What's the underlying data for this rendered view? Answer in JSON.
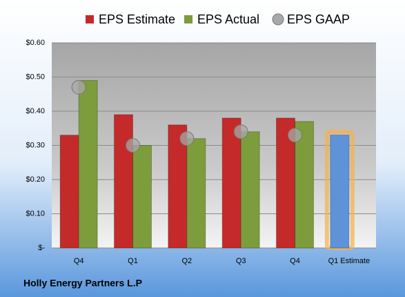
{
  "chart_data": {
    "type": "bar",
    "title": "Holly Energy Partners L.P",
    "categories": [
      "Q4",
      "Q1",
      "Q2",
      "Q3",
      "Q4",
      "Q1 Estimate"
    ],
    "series": [
      {
        "name": "EPS Estimate",
        "color": "#c42a2a",
        "values": [
          0.33,
          0.39,
          0.36,
          0.38,
          0.38,
          0.33
        ],
        "point_colors": [
          "#c42a2a",
          "#c42a2a",
          "#c42a2a",
          "#c42a2a",
          "#c42a2a",
          "#5e93d8"
        ]
      },
      {
        "name": "EPS Actual",
        "color": "#7d9c3c",
        "values": [
          0.49,
          0.3,
          0.32,
          0.34,
          0.37,
          null
        ]
      },
      {
        "name": "EPS GAAP",
        "type": "scatter",
        "color": "#a8a8a8",
        "values": [
          0.47,
          0.3,
          0.32,
          0.34,
          0.33,
          null
        ]
      }
    ],
    "highlight_color": "#f7b04a",
    "ylim": [
      0,
      0.6
    ],
    "yticks": [
      {
        "value": 0,
        "label": "$-"
      },
      {
        "value": 0.1,
        "label": "$0.10"
      },
      {
        "value": 0.2,
        "label": "$0.20"
      },
      {
        "value": 0.3,
        "label": "$0.30"
      },
      {
        "value": 0.4,
        "label": "$0.40"
      },
      {
        "value": 0.5,
        "label": "$0.50"
      },
      {
        "value": 0.6,
        "label": "$0.60"
      }
    ],
    "grid": true
  }
}
